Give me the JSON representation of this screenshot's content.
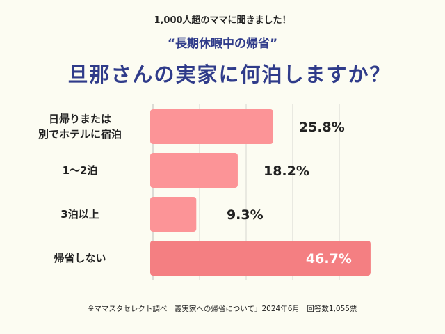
{
  "header": {
    "supertitle": "1,000人超のママに聞きました！",
    "subtitle": "“長期休暇中の帰省”",
    "title": "旦那さんの実家に何泊しますか？"
  },
  "footer": {
    "note": "※ママスタセレクト調べ「義実家への帰省について」2024年6月　回答数1,055票"
  },
  "chart_data": {
    "type": "bar",
    "orientation": "horizontal",
    "categories": [
      "日帰りまたは\n別でホテルに宿泊",
      "1〜2泊",
      "3泊以上",
      "帰省しない"
    ],
    "values": [
      25.8,
      18.2,
      9.3,
      46.7
    ],
    "value_labels": [
      "25.8%",
      "18.2%",
      "9.3%",
      "46.7%"
    ],
    "xlim": [
      0,
      50
    ],
    "grid": true,
    "colors": {
      "bar": "#fc9497",
      "highlight": "#f47f82"
    }
  }
}
